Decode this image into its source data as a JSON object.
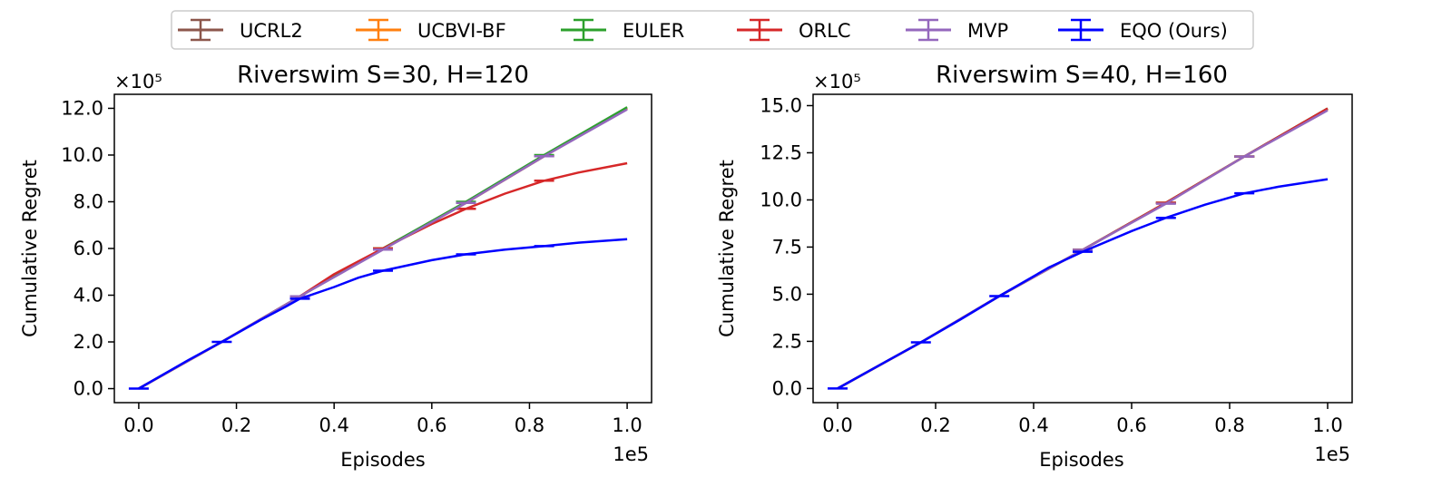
{
  "legend": {
    "placement": "top-center",
    "entries": [
      {
        "name": "UCRL2",
        "color": "#8c564b"
      },
      {
        "name": "UCBVI-BF",
        "color": "#ff7f0e"
      },
      {
        "name": "EULER",
        "color": "#2ca02c"
      },
      {
        "name": "ORLC",
        "color": "#d62728"
      },
      {
        "name": "MVP",
        "color": "#9467bd"
      },
      {
        "name": "EQO (Ours)",
        "color": "#0000ff"
      }
    ]
  },
  "chart_data": [
    {
      "type": "line",
      "title": "Riverswim S=30, H=120",
      "xlabel": "Episodes",
      "ylabel": "Cumulative Regret",
      "x_offset_label": "1e5",
      "y_offset_label": "×10⁵",
      "xlim": [
        -0.05,
        1.05
      ],
      "ylim": [
        -0.6,
        12.6
      ],
      "xticks": [
        0.0,
        0.2,
        0.4,
        0.6,
        0.8,
        1.0
      ],
      "xtick_labels": [
        "0.0",
        "0.2",
        "0.4",
        "0.6",
        "0.8",
        "1.0"
      ],
      "yticks": [
        0,
        2,
        4,
        6,
        8,
        10,
        12
      ],
      "ytick_labels": [
        "0.0",
        "2.0",
        "4.0",
        "6.0",
        "8.0",
        "10.0",
        "12.0"
      ],
      "series": [
        {
          "name": "UCRL2",
          "color": "#8c564b",
          "x": [
            0,
            0.17,
            0.33,
            0.5,
            0.67,
            0.83,
            1.0
          ],
          "y": [
            0,
            2.0,
            3.95,
            6.0,
            7.95,
            9.95,
            12.0
          ],
          "errorbar_x": [
            0.33,
            0.5,
            0.67,
            0.83
          ]
        },
        {
          "name": "UCBVI-BF",
          "color": "#ff7f0e",
          "x": [
            0,
            0.17,
            0.33,
            0.5,
            0.67,
            0.83,
            1.0
          ],
          "y": [
            0,
            2.0,
            3.95,
            6.0,
            7.95,
            9.95,
            12.0
          ],
          "errorbar_x": [
            0.33,
            0.5,
            0.67,
            0.83
          ]
        },
        {
          "name": "EULER",
          "color": "#2ca02c",
          "x": [
            0,
            0.17,
            0.33,
            0.5,
            0.67,
            0.83,
            1.0
          ],
          "y": [
            0,
            2.0,
            3.95,
            6.0,
            8.0,
            10.0,
            12.05
          ],
          "errorbar_x": [
            0.33,
            0.5,
            0.67,
            0.83
          ]
        },
        {
          "name": "ORLC",
          "color": "#d62728",
          "x": [
            0,
            0.17,
            0.33,
            0.4,
            0.5,
            0.6,
            0.67,
            0.75,
            0.83,
            0.9,
            1.0
          ],
          "y": [
            0,
            2.0,
            3.95,
            4.9,
            6.0,
            7.05,
            7.7,
            8.35,
            8.9,
            9.25,
            9.65
          ],
          "errorbar_x": [
            0.33,
            0.5,
            0.67,
            0.83
          ]
        },
        {
          "name": "MVP",
          "color": "#9467bd",
          "x": [
            0,
            0.17,
            0.33,
            0.5,
            0.67,
            0.83,
            1.0
          ],
          "y": [
            0,
            2.0,
            3.95,
            5.95,
            7.95,
            9.95,
            11.95
          ],
          "errorbar_x": [
            0.33,
            0.5,
            0.67,
            0.83
          ]
        },
        {
          "name": "EQO (Ours)",
          "color": "#0000ff",
          "x": [
            0,
            0.1,
            0.17,
            0.25,
            0.3,
            0.33,
            0.4,
            0.45,
            0.5,
            0.6,
            0.67,
            0.75,
            0.83,
            0.9,
            1.0
          ],
          "y": [
            0,
            1.2,
            2.0,
            2.95,
            3.5,
            3.85,
            4.35,
            4.75,
            5.05,
            5.5,
            5.75,
            5.95,
            6.1,
            6.25,
            6.4
          ],
          "errorbar_x": [
            0,
            0.17,
            0.33,
            0.5,
            0.67,
            0.83
          ]
        }
      ]
    },
    {
      "type": "line",
      "title": "Riverswim S=40, H=160",
      "xlabel": "Episodes",
      "ylabel": "Cumulative Regret",
      "x_offset_label": "1e5",
      "y_offset_label": "×10⁵",
      "xlim": [
        -0.05,
        1.05
      ],
      "ylim": [
        -0.75,
        15.6
      ],
      "xticks": [
        0.0,
        0.2,
        0.4,
        0.6,
        0.8,
        1.0
      ],
      "xtick_labels": [
        "0.0",
        "0.2",
        "0.4",
        "0.6",
        "0.8",
        "1.0"
      ],
      "yticks": [
        0,
        2.5,
        5,
        7.5,
        10,
        12.5,
        15
      ],
      "ytick_labels": [
        "0.0",
        "2.5",
        "5.0",
        "7.5",
        "10.0",
        "12.5",
        "15.0"
      ],
      "series": [
        {
          "name": "UCRL2",
          "color": "#8c564b",
          "x": [
            0,
            0.17,
            0.33,
            0.5,
            0.67,
            0.83,
            1.0
          ],
          "y": [
            0,
            2.45,
            4.9,
            7.35,
            9.85,
            12.3,
            14.85
          ],
          "errorbar_x": [
            0.5,
            0.67,
            0.83
          ]
        },
        {
          "name": "UCBVI-BF",
          "color": "#ff7f0e",
          "x": [
            0,
            0.17,
            0.33,
            0.5,
            0.67,
            0.83,
            1.0
          ],
          "y": [
            0,
            2.45,
            4.9,
            7.35,
            9.85,
            12.3,
            14.8
          ],
          "errorbar_x": [
            0.5,
            0.67,
            0.83
          ]
        },
        {
          "name": "EULER",
          "color": "#2ca02c",
          "x": [
            0,
            0.17,
            0.33,
            0.5,
            0.67,
            0.83,
            1.0
          ],
          "y": [
            0,
            2.45,
            4.9,
            7.35,
            9.85,
            12.3,
            14.85
          ],
          "errorbar_x": [
            0.5,
            0.67,
            0.83
          ]
        },
        {
          "name": "ORLC",
          "color": "#d62728",
          "x": [
            0,
            0.17,
            0.33,
            0.5,
            0.67,
            0.83,
            1.0
          ],
          "y": [
            0,
            2.45,
            4.9,
            7.35,
            9.85,
            12.3,
            14.85
          ],
          "errorbar_x": [
            0.5,
            0.67,
            0.83
          ]
        },
        {
          "name": "MVP",
          "color": "#9467bd",
          "x": [
            0,
            0.17,
            0.33,
            0.5,
            0.67,
            0.83,
            1.0
          ],
          "y": [
            0,
            2.45,
            4.9,
            7.35,
            9.8,
            12.3,
            14.75
          ],
          "errorbar_x": [
            0.5,
            0.67,
            0.83
          ]
        },
        {
          "name": "EQO (Ours)",
          "color": "#0000ff",
          "x": [
            0,
            0.1,
            0.17,
            0.25,
            0.33,
            0.43,
            0.5,
            0.6,
            0.67,
            0.75,
            0.83,
            0.9,
            1.0
          ],
          "y": [
            0,
            1.45,
            2.45,
            3.65,
            4.9,
            6.4,
            7.25,
            8.35,
            9.05,
            9.75,
            10.35,
            10.7,
            11.1
          ],
          "errorbar_x": [
            0,
            0.17,
            0.33,
            0.5,
            0.67,
            0.83
          ]
        }
      ]
    }
  ]
}
